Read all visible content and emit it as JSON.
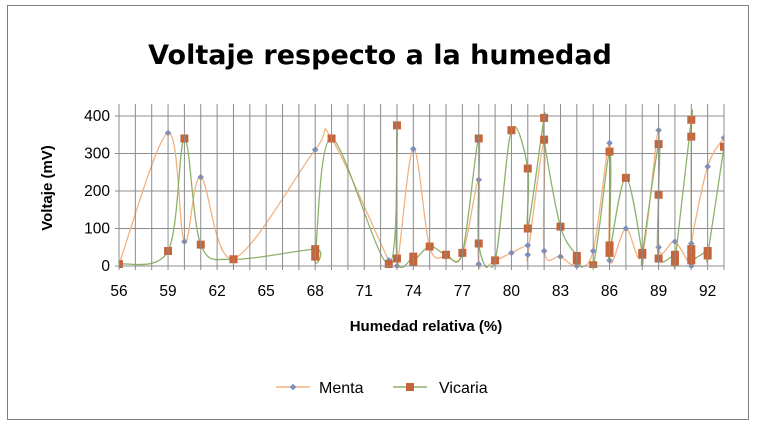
{
  "chart_data": {
    "type": "scatter",
    "title": "Voltaje respecto a la humedad",
    "xlabel": "Humedad relativa (%)",
    "ylabel": "Voltaje (mV)",
    "xlim": [
      56,
      93
    ],
    "ylim": [
      0,
      400
    ],
    "x_ticks": [
      56,
      59,
      62,
      65,
      68,
      71,
      74,
      77,
      80,
      83,
      86,
      89,
      92
    ],
    "x_tick_labels": [
      "56",
      "59",
      "62",
      "65",
      "68",
      "71",
      "74",
      "77",
      "80",
      "83",
      "86",
      "89",
      "92"
    ],
    "y_ticks": [
      0,
      100,
      200,
      300,
      400
    ],
    "y_tick_labels": [
      "0",
      "100",
      "200",
      "300",
      "400"
    ],
    "grid": true,
    "legend_position": "bottom",
    "series": [
      {
        "name": "Menta",
        "color": "#f3b17f",
        "marker_color": "#7b8fc6",
        "marker": "diamond",
        "x": [
          56,
          59,
          60,
          61,
          63,
          68,
          69,
          72.5,
          73,
          74,
          75,
          76,
          77,
          78,
          78,
          79,
          80,
          81,
          81,
          82,
          82,
          83,
          84,
          85,
          86,
          86,
          87,
          88,
          89,
          89,
          90,
          91,
          91,
          92,
          93
        ],
        "y": [
          5,
          355,
          65,
          237,
          20,
          310,
          340,
          15,
          0,
          312,
          50,
          25,
          30,
          230,
          5,
          15,
          35,
          55,
          30,
          330,
          40,
          25,
          0,
          40,
          328,
          15,
          100,
          30,
          362,
          50,
          65,
          0,
          60,
          265,
          342
        ]
      },
      {
        "name": "Vicaria",
        "color": "#8db26a",
        "marker_color": "#c4663a",
        "marker": "square",
        "x": [
          56,
          59,
          60,
          61,
          63,
          68,
          68,
          69,
          72.5,
          73,
          73,
          74,
          74,
          75,
          76,
          77,
          78,
          78,
          79,
          80,
          81,
          81,
          82,
          82,
          83,
          84,
          84,
          85,
          86,
          86,
          86,
          87,
          88,
          88,
          89,
          89,
          89,
          90,
          90,
          91,
          91,
          91,
          91,
          91,
          92,
          92,
          93
        ],
        "y": [
          5,
          40,
          340,
          57,
          18,
          45,
          25,
          340,
          5,
          375,
          20,
          25,
          12,
          52,
          30,
          35,
          340,
          60,
          15,
          362,
          260,
          100,
          395,
          337,
          105,
          27,
          15,
          2,
          305,
          55,
          35,
          235,
          35,
          30,
          325,
          190,
          20,
          30,
          10,
          390,
          345,
          45,
          30,
          15,
          40,
          28,
          318
        ]
      }
    ]
  }
}
